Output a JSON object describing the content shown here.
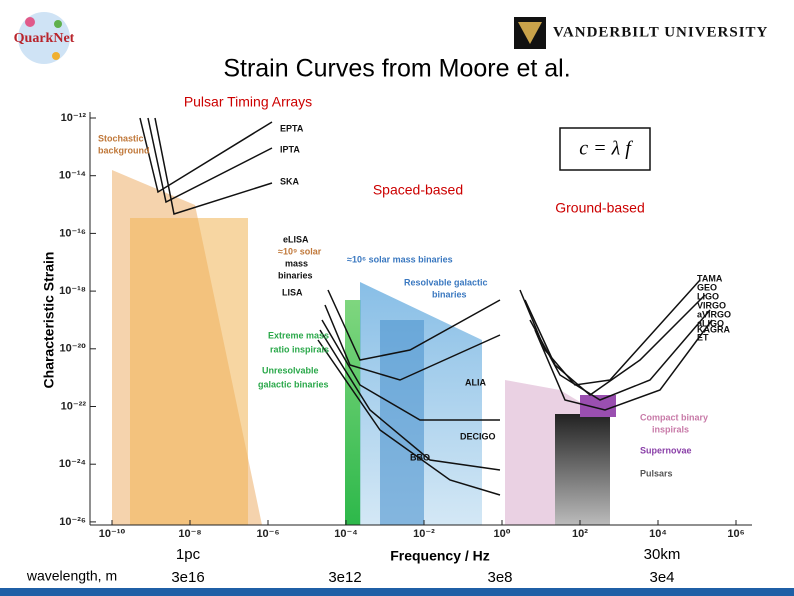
{
  "header": {
    "logo": "QuarkNet",
    "university": "VANDERBILT UNIVERSITY",
    "title": "Strain Curves from Moore et al."
  },
  "annotations": {
    "pta": "Pulsar Timing Arrays",
    "space": "Spaced-based",
    "ground": "Ground-based",
    "formula": "c = λ f"
  },
  "figure": {
    "y_label": "Characteristic Strain",
    "x_label": "Frequency / Hz",
    "yticks": [
      "10⁻¹²",
      "10⁻¹⁴",
      "10⁻¹⁶",
      "10⁻¹⁸",
      "10⁻²⁰",
      "10⁻²²",
      "10⁻²⁴",
      "10⁻²⁶"
    ],
    "xticks": [
      "10⁻¹⁰",
      "10⁻⁸",
      "10⁻⁶",
      "10⁻⁴",
      "10⁻²",
      "10⁰",
      "10²",
      "10⁴",
      "10⁶"
    ],
    "region_labels": [
      {
        "text": "Stochastic",
        "color": "#c0783a"
      },
      {
        "text": "background",
        "color": "#c0783a"
      },
      {
        "text": "EPTA",
        "color": "#111"
      },
      {
        "text": "IPTA",
        "color": "#111"
      },
      {
        "text": "SKA",
        "color": "#111"
      },
      {
        "text": "eLISA",
        "color": "#111"
      },
      {
        "text": "≈10⁹ solar",
        "color": "#c0783a"
      },
      {
        "text": "mass",
        "color": "#111"
      },
      {
        "text": "binaries",
        "color": "#111"
      },
      {
        "text": "LISA",
        "color": "#111"
      },
      {
        "text": "≈10⁶ solar mass binaries",
        "color": "#3a78c0"
      },
      {
        "text": "Resolvable galactic",
        "color": "#3a78c0"
      },
      {
        "text": "binaries",
        "color": "#3a78c0"
      },
      {
        "text": "Extreme mass",
        "color": "#2aa84a"
      },
      {
        "text": "ratio inspirals",
        "color": "#2aa84a"
      },
      {
        "text": "Unresolvable",
        "color": "#2aa84a"
      },
      {
        "text": "galactic binaries",
        "color": "#2aa84a"
      },
      {
        "text": "ALIA",
        "color": "#111"
      },
      {
        "text": "DECIGO",
        "color": "#111"
      },
      {
        "text": "BBO",
        "color": "#111"
      },
      {
        "text": "TAMA",
        "color": "#111"
      },
      {
        "text": "GEO",
        "color": "#111"
      },
      {
        "text": "LIGO",
        "color": "#111"
      },
      {
        "text": "VIRGO",
        "color": "#111"
      },
      {
        "text": "aVIRGO",
        "color": "#111"
      },
      {
        "text": "aLIGO",
        "color": "#111"
      },
      {
        "text": "KAGRA",
        "color": "#111"
      },
      {
        "text": "ET",
        "color": "#111"
      },
      {
        "text": "Compact binary",
        "color": "#c87aa8"
      },
      {
        "text": "inspirals",
        "color": "#c87aa8"
      },
      {
        "text": "Supernovae",
        "color": "#8a3fa8"
      },
      {
        "text": "Pulsars",
        "color": "#555"
      }
    ]
  },
  "wavelength": {
    "label": "wavelength, m",
    "entries": [
      {
        "top": "1pc",
        "bottom": "3e16"
      },
      {
        "top": null,
        "bottom": "3e12"
      },
      {
        "top": null,
        "bottom": "3e8"
      },
      {
        "top": "30km",
        "bottom": "3e4"
      }
    ]
  }
}
